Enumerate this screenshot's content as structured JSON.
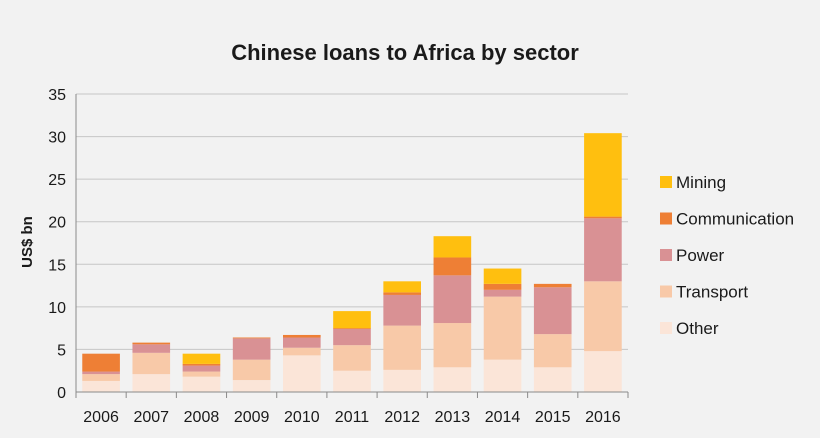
{
  "chart_data": {
    "type": "bar",
    "stacked": true,
    "title": "Chinese loans to Africa by sector",
    "xlabel": "",
    "ylabel": "US$ bn",
    "ylim": [
      0,
      35
    ],
    "yticks": [
      0,
      5,
      10,
      15,
      20,
      25,
      30,
      35
    ],
    "grid": true,
    "legend_position": "right",
    "categories": [
      "2006",
      "2007",
      "2008",
      "2009",
      "2010",
      "2011",
      "2012",
      "2013",
      "2014",
      "2015",
      "2016"
    ],
    "series": [
      {
        "name": "Other",
        "color": "#fbe5d8",
        "values": [
          1.3,
          2.1,
          1.8,
          1.4,
          4.3,
          2.5,
          2.6,
          2.9,
          3.8,
          2.9,
          4.8
        ]
      },
      {
        "name": "Transport",
        "color": "#f8c9a8",
        "values": [
          0.8,
          2.5,
          0.6,
          2.4,
          0.9,
          3.0,
          5.2,
          5.2,
          7.4,
          3.9,
          8.2
        ]
      },
      {
        "name": "Power",
        "color": "#d99194",
        "values": [
          0.3,
          1.0,
          0.7,
          2.5,
          1.2,
          1.9,
          3.6,
          5.6,
          0.8,
          5.5,
          7.4
        ]
      },
      {
        "name": "Communication",
        "color": "#ee7f35",
        "values": [
          2.1,
          0.2,
          0.2,
          0.1,
          0.3,
          0.1,
          0.3,
          2.1,
          0.7,
          0.4,
          0.2
        ]
      },
      {
        "name": "Mining",
        "color": "#ffbf0f",
        "values": [
          0.0,
          0.0,
          1.2,
          0.0,
          0.0,
          2.0,
          1.3,
          2.5,
          1.8,
          0.0,
          9.8
        ]
      }
    ]
  }
}
